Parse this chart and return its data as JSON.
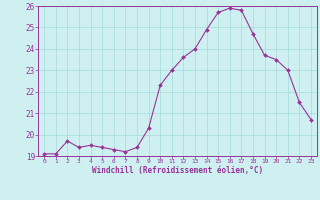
{
  "x": [
    0,
    1,
    2,
    3,
    4,
    5,
    6,
    7,
    8,
    9,
    10,
    11,
    12,
    13,
    14,
    15,
    16,
    17,
    18,
    19,
    20,
    21,
    22,
    23
  ],
  "y": [
    19.1,
    19.1,
    19.7,
    19.4,
    19.5,
    19.4,
    19.3,
    19.2,
    19.4,
    20.3,
    22.3,
    23.0,
    23.6,
    24.0,
    24.9,
    25.7,
    25.9,
    25.8,
    24.7,
    23.7,
    23.5,
    23.0,
    21.5,
    20.7
  ],
  "line_color": "#993399",
  "marker": "D",
  "marker_size": 2.0,
  "bg_color": "#cff0f0",
  "grid_color": "#aadddd",
  "xlabel": "Windchill (Refroidissement éolien,°C)",
  "xlabel_color": "#993399",
  "tick_color": "#993399",
  "spine_color": "#993399",
  "ylim_min": 19,
  "ylim_max": 26,
  "xlim_min": -0.5,
  "xlim_max": 23.5,
  "yticks": [
    19,
    20,
    21,
    22,
    23,
    24,
    25,
    26
  ],
  "xticks": [
    0,
    1,
    2,
    3,
    4,
    5,
    6,
    7,
    8,
    9,
    10,
    11,
    12,
    13,
    14,
    15,
    16,
    17,
    18,
    19,
    20,
    21,
    22,
    23
  ],
  "xlabel_fontsize": 5.5,
  "xtick_fontsize": 4.5,
  "ytick_fontsize": 5.5
}
